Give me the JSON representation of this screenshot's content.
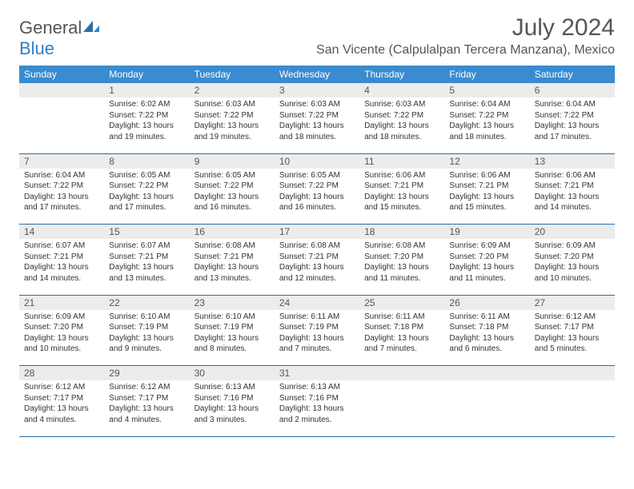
{
  "logo": {
    "text1": "General",
    "text2": "Blue"
  },
  "title": "July 2024",
  "location": "San Vicente (Calpulalpan Tercera Manzana), Mexico",
  "columns": [
    "Sunday",
    "Monday",
    "Tuesday",
    "Wednesday",
    "Thursday",
    "Friday",
    "Saturday"
  ],
  "colors": {
    "header_bg": "#3a8bd0",
    "header_text": "#ffffff",
    "daynum_bg": "#ececec",
    "text": "#333333",
    "title_text": "#555555",
    "logo_blue": "#2f7fc6",
    "row_border": "#2d6ea8"
  },
  "weeks": [
    {
      "nums": [
        "",
        "1",
        "2",
        "3",
        "4",
        "5",
        "6"
      ],
      "cells": [
        null,
        {
          "sunrise": "Sunrise: 6:02 AM",
          "sunset": "Sunset: 7:22 PM",
          "daylight": "Daylight: 13 hours and 19 minutes."
        },
        {
          "sunrise": "Sunrise: 6:03 AM",
          "sunset": "Sunset: 7:22 PM",
          "daylight": "Daylight: 13 hours and 19 minutes."
        },
        {
          "sunrise": "Sunrise: 6:03 AM",
          "sunset": "Sunset: 7:22 PM",
          "daylight": "Daylight: 13 hours and 18 minutes."
        },
        {
          "sunrise": "Sunrise: 6:03 AM",
          "sunset": "Sunset: 7:22 PM",
          "daylight": "Daylight: 13 hours and 18 minutes."
        },
        {
          "sunrise": "Sunrise: 6:04 AM",
          "sunset": "Sunset: 7:22 PM",
          "daylight": "Daylight: 13 hours and 18 minutes."
        },
        {
          "sunrise": "Sunrise: 6:04 AM",
          "sunset": "Sunset: 7:22 PM",
          "daylight": "Daylight: 13 hours and 17 minutes."
        }
      ]
    },
    {
      "nums": [
        "7",
        "8",
        "9",
        "10",
        "11",
        "12",
        "13"
      ],
      "cells": [
        {
          "sunrise": "Sunrise: 6:04 AM",
          "sunset": "Sunset: 7:22 PM",
          "daylight": "Daylight: 13 hours and 17 minutes."
        },
        {
          "sunrise": "Sunrise: 6:05 AM",
          "sunset": "Sunset: 7:22 PM",
          "daylight": "Daylight: 13 hours and 17 minutes."
        },
        {
          "sunrise": "Sunrise: 6:05 AM",
          "sunset": "Sunset: 7:22 PM",
          "daylight": "Daylight: 13 hours and 16 minutes."
        },
        {
          "sunrise": "Sunrise: 6:05 AM",
          "sunset": "Sunset: 7:22 PM",
          "daylight": "Daylight: 13 hours and 16 minutes."
        },
        {
          "sunrise": "Sunrise: 6:06 AM",
          "sunset": "Sunset: 7:21 PM",
          "daylight": "Daylight: 13 hours and 15 minutes."
        },
        {
          "sunrise": "Sunrise: 6:06 AM",
          "sunset": "Sunset: 7:21 PM",
          "daylight": "Daylight: 13 hours and 15 minutes."
        },
        {
          "sunrise": "Sunrise: 6:06 AM",
          "sunset": "Sunset: 7:21 PM",
          "daylight": "Daylight: 13 hours and 14 minutes."
        }
      ]
    },
    {
      "nums": [
        "14",
        "15",
        "16",
        "17",
        "18",
        "19",
        "20"
      ],
      "cells": [
        {
          "sunrise": "Sunrise: 6:07 AM",
          "sunset": "Sunset: 7:21 PM",
          "daylight": "Daylight: 13 hours and 14 minutes."
        },
        {
          "sunrise": "Sunrise: 6:07 AM",
          "sunset": "Sunset: 7:21 PM",
          "daylight": "Daylight: 13 hours and 13 minutes."
        },
        {
          "sunrise": "Sunrise: 6:08 AM",
          "sunset": "Sunset: 7:21 PM",
          "daylight": "Daylight: 13 hours and 13 minutes."
        },
        {
          "sunrise": "Sunrise: 6:08 AM",
          "sunset": "Sunset: 7:21 PM",
          "daylight": "Daylight: 13 hours and 12 minutes."
        },
        {
          "sunrise": "Sunrise: 6:08 AM",
          "sunset": "Sunset: 7:20 PM",
          "daylight": "Daylight: 13 hours and 11 minutes."
        },
        {
          "sunrise": "Sunrise: 6:09 AM",
          "sunset": "Sunset: 7:20 PM",
          "daylight": "Daylight: 13 hours and 11 minutes."
        },
        {
          "sunrise": "Sunrise: 6:09 AM",
          "sunset": "Sunset: 7:20 PM",
          "daylight": "Daylight: 13 hours and 10 minutes."
        }
      ]
    },
    {
      "nums": [
        "21",
        "22",
        "23",
        "24",
        "25",
        "26",
        "27"
      ],
      "cells": [
        {
          "sunrise": "Sunrise: 6:09 AM",
          "sunset": "Sunset: 7:20 PM",
          "daylight": "Daylight: 13 hours and 10 minutes."
        },
        {
          "sunrise": "Sunrise: 6:10 AM",
          "sunset": "Sunset: 7:19 PM",
          "daylight": "Daylight: 13 hours and 9 minutes."
        },
        {
          "sunrise": "Sunrise: 6:10 AM",
          "sunset": "Sunset: 7:19 PM",
          "daylight": "Daylight: 13 hours and 8 minutes."
        },
        {
          "sunrise": "Sunrise: 6:11 AM",
          "sunset": "Sunset: 7:19 PM",
          "daylight": "Daylight: 13 hours and 7 minutes."
        },
        {
          "sunrise": "Sunrise: 6:11 AM",
          "sunset": "Sunset: 7:18 PM",
          "daylight": "Daylight: 13 hours and 7 minutes."
        },
        {
          "sunrise": "Sunrise: 6:11 AM",
          "sunset": "Sunset: 7:18 PM",
          "daylight": "Daylight: 13 hours and 6 minutes."
        },
        {
          "sunrise": "Sunrise: 6:12 AM",
          "sunset": "Sunset: 7:17 PM",
          "daylight": "Daylight: 13 hours and 5 minutes."
        }
      ]
    },
    {
      "nums": [
        "28",
        "29",
        "30",
        "31",
        "",
        "",
        ""
      ],
      "cells": [
        {
          "sunrise": "Sunrise: 6:12 AM",
          "sunset": "Sunset: 7:17 PM",
          "daylight": "Daylight: 13 hours and 4 minutes."
        },
        {
          "sunrise": "Sunrise: 6:12 AM",
          "sunset": "Sunset: 7:17 PM",
          "daylight": "Daylight: 13 hours and 4 minutes."
        },
        {
          "sunrise": "Sunrise: 6:13 AM",
          "sunset": "Sunset: 7:16 PM",
          "daylight": "Daylight: 13 hours and 3 minutes."
        },
        {
          "sunrise": "Sunrise: 6:13 AM",
          "sunset": "Sunset: 7:16 PM",
          "daylight": "Daylight: 13 hours and 2 minutes."
        },
        null,
        null,
        null
      ]
    }
  ]
}
